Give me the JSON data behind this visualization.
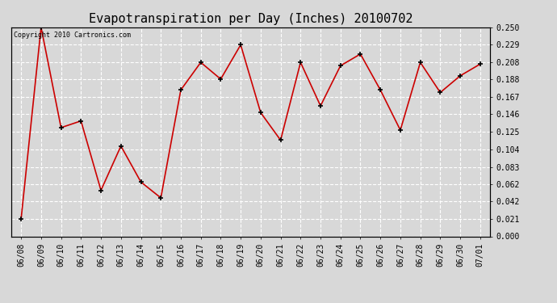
{
  "title": "Evapotranspiration per Day (Inches) 20100702",
  "copyright": "Copyright 2010 Cartronics.com",
  "x_labels": [
    "06/08",
    "06/09",
    "06/10",
    "06/11",
    "06/12",
    "06/13",
    "06/14",
    "06/15",
    "06/16",
    "06/17",
    "06/18",
    "06/19",
    "06/20",
    "06/21",
    "06/22",
    "06/23",
    "06/24",
    "06/25",
    "06/26",
    "06/27",
    "06/28",
    "06/29",
    "06/30",
    "07/01"
  ],
  "y_values": [
    0.021,
    0.25,
    0.13,
    0.138,
    0.055,
    0.108,
    0.065,
    0.046,
    0.175,
    0.208,
    0.188,
    0.229,
    0.148,
    0.115,
    0.208,
    0.156,
    0.204,
    0.218,
    0.175,
    0.127,
    0.208,
    0.172,
    0.192,
    0.206
  ],
  "line_color": "#cc0000",
  "marker": "+",
  "marker_color": "#000000",
  "ylim": [
    0.0,
    0.25
  ],
  "yticks": [
    0.0,
    0.021,
    0.042,
    0.062,
    0.083,
    0.104,
    0.125,
    0.146,
    0.167,
    0.188,
    0.208,
    0.229,
    0.25
  ],
  "background_color": "#d8d8d8",
  "plot_bg_color": "#d8d8d8",
  "title_fontsize": 11,
  "copyright_fontsize": 6,
  "tick_fontsize": 7,
  "grid_color": "#ffffff",
  "grid_style": "--"
}
